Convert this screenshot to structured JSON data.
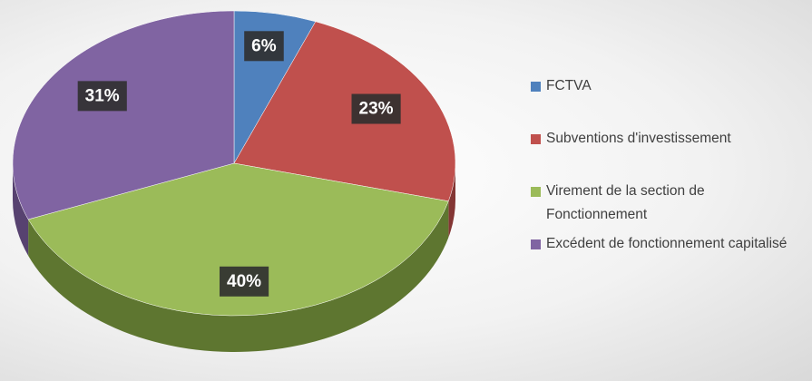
{
  "chart_data": {
    "type": "pie",
    "categories": [
      "FCTVA",
      "Subventions d'investissement",
      "Virement de la section de Fonctionnement",
      "Excédent de fonctionnement capitalisé"
    ],
    "values": [
      6,
      23,
      40,
      31
    ],
    "value_labels": [
      "6%",
      "23%",
      "40%",
      "31%"
    ],
    "colors": [
      "#4f81bd",
      "#c0504d",
      "#9bbb59",
      "#8064a2"
    ],
    "side_colors": [
      "#36597f",
      "#843634",
      "#5e7630",
      "#574270"
    ],
    "legend": "right"
  }
}
